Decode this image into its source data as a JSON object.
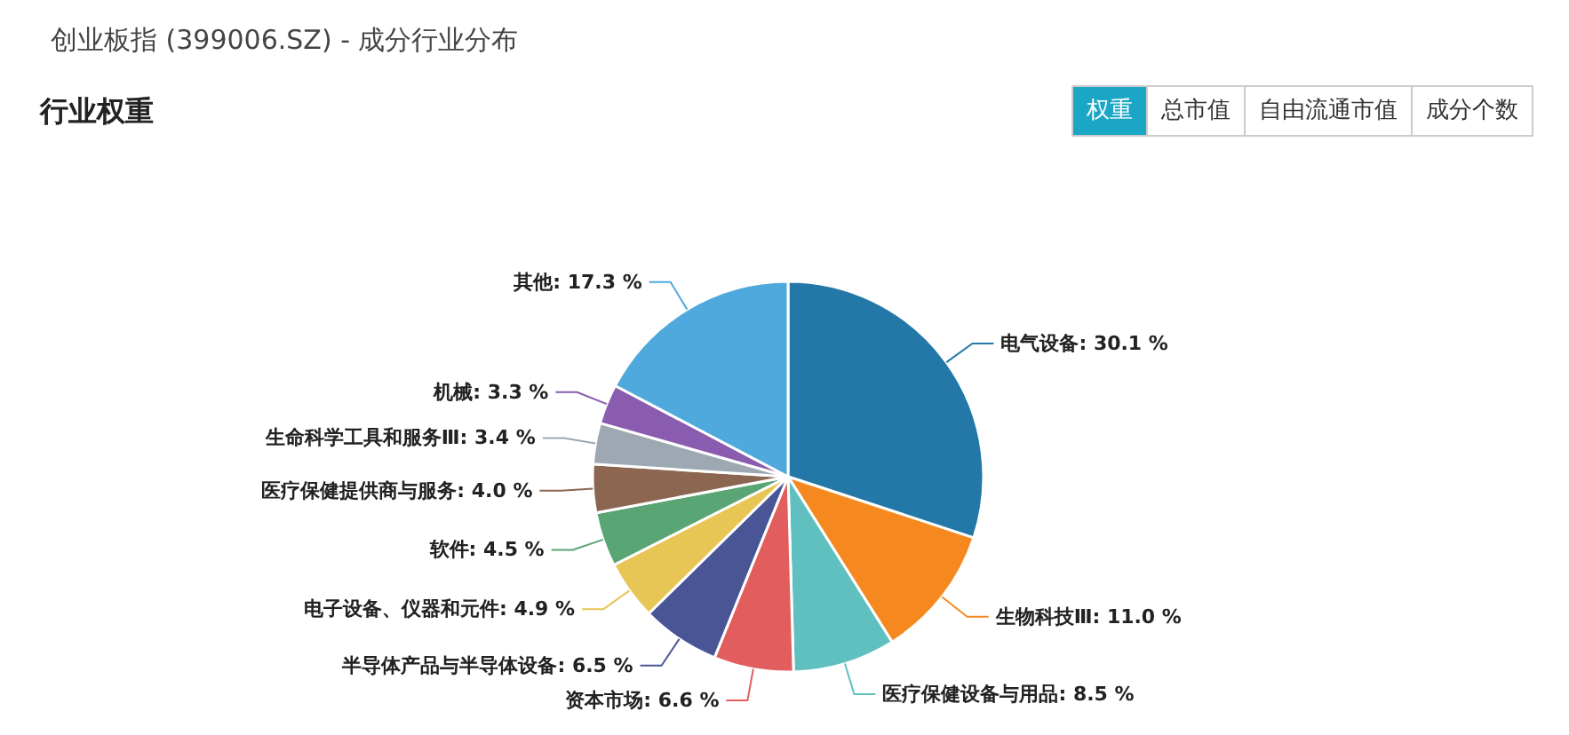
{
  "chart_data": {
    "type": "pie",
    "title": "创业板指 (399006.SZ) - 成分行业分布",
    "subtitle": "行业权重",
    "annotations": [
      "权重",
      "总市值",
      "自由流通市值",
      "成分个数"
    ],
    "categories": [
      "电气设备",
      "生物科技Ⅲ",
      "医疗保健设备与用品",
      "资本市场",
      "半导体产品与半导体设备",
      "电子设备、仪器和元件",
      "软件",
      "医疗保健提供商与服务",
      "生命科学工具和服务Ⅲ",
      "机械",
      "其他"
    ],
    "values": [
      30.1,
      11.0,
      8.5,
      6.6,
      6.5,
      4.9,
      4.5,
      4.0,
      3.4,
      3.3,
      17.3
    ],
    "value_labels": [
      "30.1 %",
      "11.0 %",
      "8.5 %",
      "6.6 %",
      "6.5 %",
      "4.9 %",
      "4.5 %",
      "4.0 %",
      "3.4 %",
      "3.3 %",
      "17.3 %"
    ],
    "colors": [
      "#2378a8",
      "#f5891f",
      "#5fc0bf",
      "#e25d5e",
      "#4a5596",
      "#e7c656",
      "#5aa574",
      "#8c6650",
      "#9ea8b2",
      "#8a5cb0",
      "#4fa9dc"
    ]
  }
}
